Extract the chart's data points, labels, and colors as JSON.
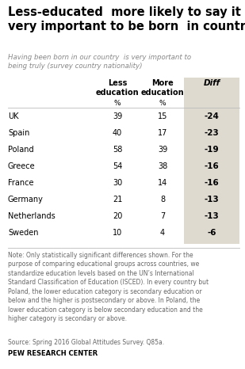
{
  "title": "Less-educated  more likely to say it is\nvery important to be born  in country",
  "subtitle": "Having been born in our country  is very important to\nbeing truly (survey country nationality)",
  "col_headers": [
    "Less\neducation",
    "More\neducation",
    "Diff"
  ],
  "pct_label": "%",
  "countries": [
    "UK",
    "Spain",
    "Poland",
    "Greece",
    "France",
    "Germany",
    "Netherlands",
    "Sweden"
  ],
  "less_education": [
    39,
    40,
    58,
    54,
    30,
    21,
    20,
    10
  ],
  "more_education": [
    15,
    17,
    39,
    38,
    14,
    8,
    7,
    4
  ],
  "diff": [
    -24,
    -23,
    -19,
    -16,
    -16,
    -13,
    -13,
    -6
  ],
  "note": "Note: Only statistically significant differences shown. For the\npurpose of comparing educational groups across countries, we\nstandardize education levels based on the UN’s International\nStandard Classification of Education (ISCED). In every country but\nPoland, the lower education category is secondary education or\nbelow and the higher is postsecondary or above. In Poland, the\nlower education category is below secondary education and the\nhigher category is secondary or above.",
  "source": "Source: Spring 2016 Global Attitudes Survey. Q85a.",
  "credit": "PEW RESEARCH CENTER",
  "diff_bg_color": "#dedad0",
  "title_color": "#000000",
  "subtitle_color": "#888888",
  "body_color": "#000000",
  "note_color": "#666666"
}
